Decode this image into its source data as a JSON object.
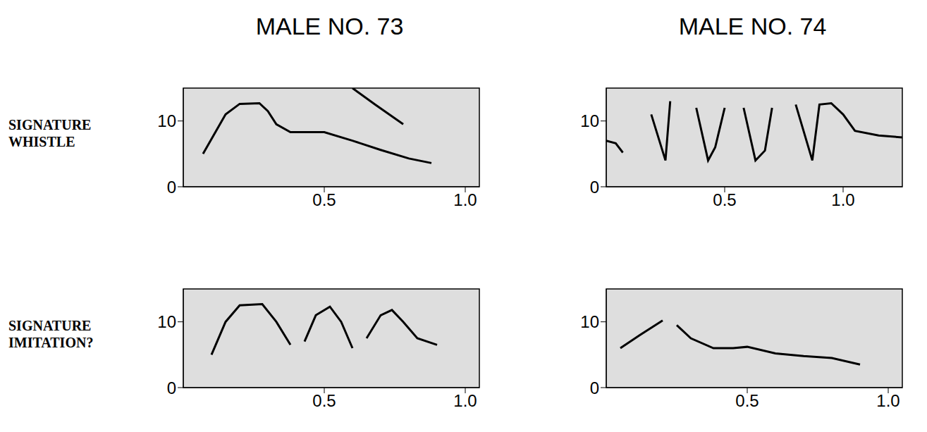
{
  "column_titles": [
    "MALE NO. 73",
    "MALE NO. 74"
  ],
  "row_labels": [
    "SIGNATURE WHISTLE",
    "SIGNATURE IMITATION?"
  ],
  "chart_data": [
    {
      "type": "line",
      "xlim": [
        0,
        1.05
      ],
      "xticks": [
        0.5,
        1.0
      ],
      "ylim": [
        0,
        15
      ],
      "yticks": [
        0,
        10
      ],
      "grid": false,
      "series": [
        {
          "color": "#000000",
          "x": [
            0.07,
            0.11,
            0.15,
            0.2,
            0.27,
            0.3,
            0.33,
            0.38,
            0.45,
            0.5,
            0.6,
            0.7,
            0.8,
            0.88
          ],
          "values": [
            5,
            8,
            11,
            12.6,
            12.7,
            11.5,
            9.5,
            8.3,
            8.3,
            8.3,
            7,
            5.6,
            4.3,
            3.6
          ]
        },
        {
          "color": "#000000",
          "x": [
            0.6,
            0.68,
            0.78
          ],
          "values": [
            15,
            12.5,
            9.5
          ]
        }
      ]
    },
    {
      "type": "line",
      "xlim": [
        0,
        1.25
      ],
      "xticks": [
        0.5,
        1.0
      ],
      "ylim": [
        0,
        15
      ],
      "yticks": [
        0,
        10
      ],
      "grid": false,
      "series": [
        {
          "color": "#000000",
          "x": [
            0.0,
            0.04,
            0.07,
            0.13,
            0.19,
            0.25,
            0.27,
            0.32,
            0.38,
            0.43,
            0.46,
            0.5,
            0.54,
            0.58,
            0.63,
            0.67,
            0.7,
            0.75,
            0.8,
            0.87,
            0.9,
            0.95,
            1.0,
            1.05,
            1.15,
            1.25
          ],
          "values": [
            7,
            6.6,
            5.2,
            null,
            11,
            4,
            13,
            null,
            12,
            4,
            6,
            12,
            null,
            12,
            4,
            5.5,
            12,
            null,
            12.5,
            4,
            12.5,
            12.7,
            11,
            8.5,
            7.8,
            7.5
          ]
        }
      ]
    },
    {
      "type": "line",
      "xlim": [
        0,
        1.05
      ],
      "xticks": [
        0.5,
        1.0
      ],
      "ylim": [
        0,
        15
      ],
      "yticks": [
        0,
        10
      ],
      "grid": false,
      "series": [
        {
          "color": "#000000",
          "x": [
            0.1,
            0.15,
            0.2,
            0.28,
            0.33,
            0.38,
            0.405,
            0.43,
            0.47,
            0.52,
            0.56,
            0.6,
            0.625,
            0.65,
            0.7,
            0.74,
            0.78,
            0.83,
            0.9
          ],
          "values": [
            5,
            10,
            12.5,
            12.7,
            10,
            6.5,
            null,
            7,
            11,
            12.3,
            10,
            6,
            null,
            7.5,
            11,
            11.8,
            10,
            7.5,
            6.5
          ]
        }
      ]
    },
    {
      "type": "line",
      "xlim": [
        0,
        1.05
      ],
      "xticks": [
        0.5,
        1.0
      ],
      "ylim": [
        0,
        15
      ],
      "yticks": [
        0,
        10
      ],
      "grid": false,
      "series": [
        {
          "color": "#000000",
          "x": [
            0.05,
            0.12,
            0.2,
            0.225,
            0.25,
            0.3,
            0.38,
            0.45,
            0.5,
            0.6,
            0.7,
            0.8,
            0.9
          ],
          "values": [
            6,
            8,
            10.2,
            null,
            9.5,
            7.5,
            6,
            6,
            6.2,
            5.2,
            4.8,
            4.5,
            3.5
          ]
        }
      ]
    }
  ]
}
